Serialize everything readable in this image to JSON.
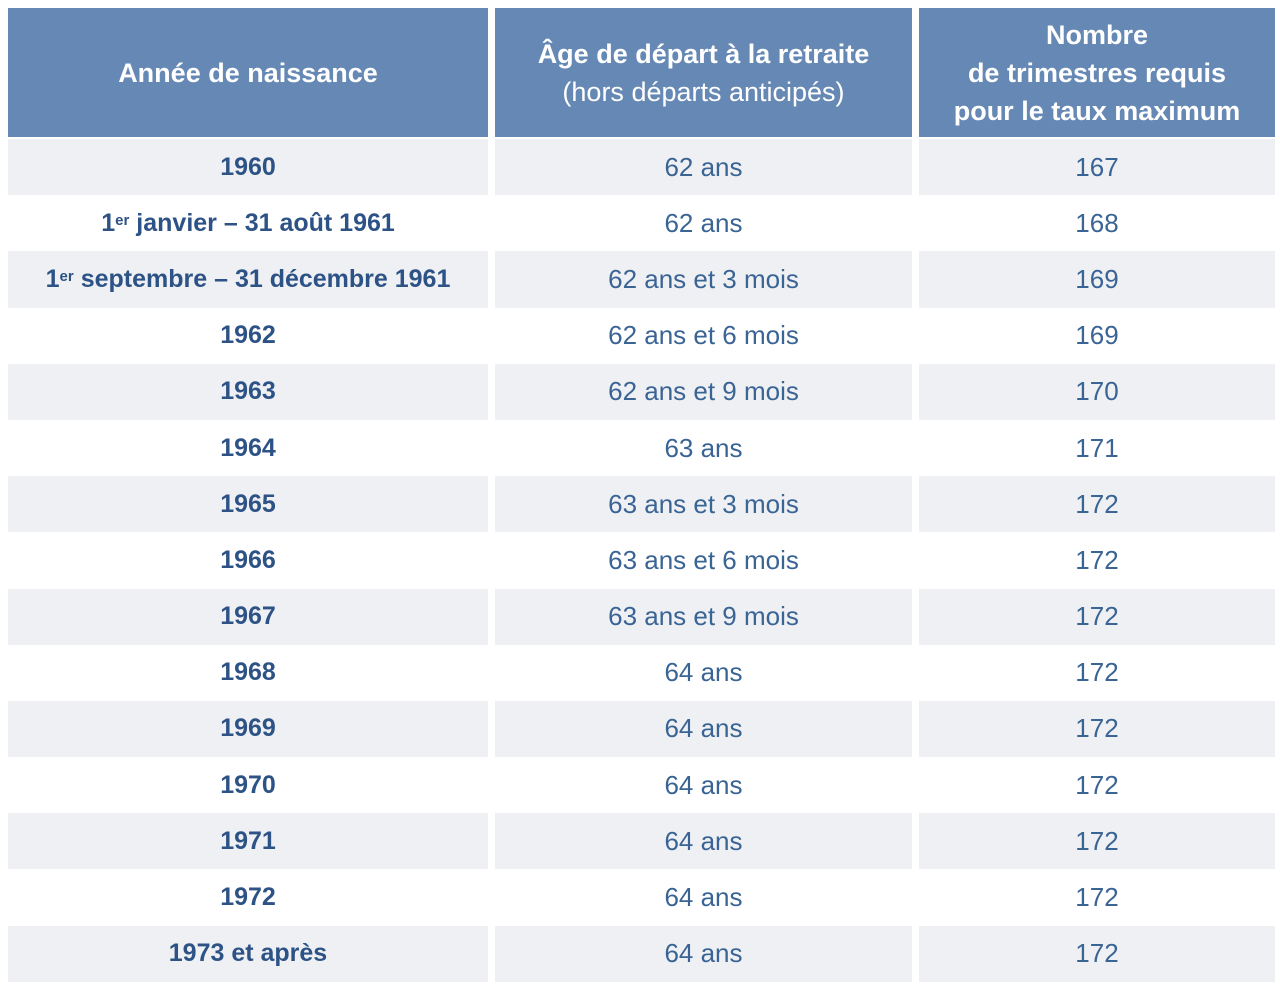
{
  "table": {
    "header": [
      {
        "lines": [
          "Année de naissance"
        ]
      },
      {
        "lines": [
          "Âge de départ à la retraite"
        ],
        "sub": "(hors départs anticipés)"
      },
      {
        "lines": [
          "Nombre",
          "de trimestres requis",
          "pour le taux maximum"
        ]
      }
    ],
    "rows": [
      {
        "birth": {
          "main": "1960"
        },
        "age": "62 ans",
        "quarters": 167
      },
      {
        "birth": {
          "main": "1",
          "sup": "er",
          "rest": "janvier – 31 août 1961"
        },
        "age": "62 ans",
        "quarters": 168
      },
      {
        "birth": {
          "main": "1",
          "sup": "er",
          "rest": "septembre – 31 décembre 1961"
        },
        "age": "62 ans et 3 mois",
        "quarters": 169
      },
      {
        "birth": {
          "main": "1962"
        },
        "age": "62 ans et 6 mois",
        "quarters": 169
      },
      {
        "birth": {
          "main": "1963"
        },
        "age": "62 ans et 9 mois",
        "quarters": 170
      },
      {
        "birth": {
          "main": "1964"
        },
        "age": "63 ans",
        "quarters": 171
      },
      {
        "birth": {
          "main": "1965"
        },
        "age": "63 ans et 3 mois",
        "quarters": 172
      },
      {
        "birth": {
          "main": "1966"
        },
        "age": "63 ans et 6 mois",
        "quarters": 172
      },
      {
        "birth": {
          "main": "1967"
        },
        "age": "63 ans et 9 mois",
        "quarters": 172
      },
      {
        "birth": {
          "main": "1968"
        },
        "age": "64 ans",
        "quarters": 172
      },
      {
        "birth": {
          "main": "1969"
        },
        "age": "64 ans",
        "quarters": 172
      },
      {
        "birth": {
          "main": "1970"
        },
        "age": "64 ans",
        "quarters": 172
      },
      {
        "birth": {
          "main": "1971"
        },
        "age": "64 ans",
        "quarters": 172
      },
      {
        "birth": {
          "main": "1972"
        },
        "age": "64 ans",
        "quarters": 172
      },
      {
        "birth": {
          "main": "1973 et après"
        },
        "age": "64 ans",
        "quarters": 172
      }
    ]
  }
}
